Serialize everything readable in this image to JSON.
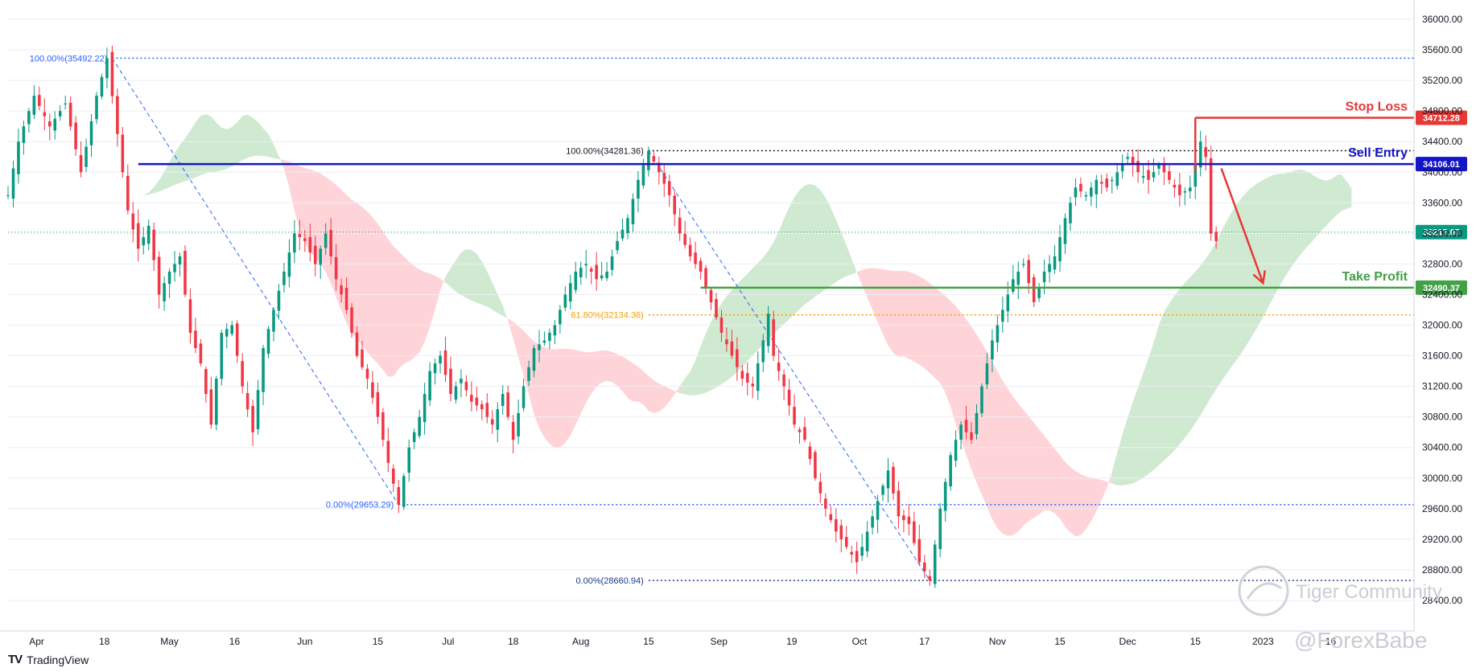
{
  "brand": {
    "logo": "TV",
    "name": "TradingView"
  },
  "watermark": {
    "community": "Tiger Community",
    "handle": "@ForexBabe"
  },
  "chart_data": {
    "type": "candlestick",
    "y_axis": {
      "min": 28000,
      "max": 36200,
      "ticks": [
        "36000.00",
        "35600.00",
        "35200.00",
        "34800.00",
        "34400.00",
        "34000.00",
        "33600.00",
        "33200.00",
        "32800.00",
        "32400.00",
        "32000.00",
        "31600.00",
        "31200.00",
        "30800.00",
        "30400.00",
        "30000.00",
        "29600.00",
        "29200.00",
        "28800.00",
        "28400.00"
      ],
      "tick_values": [
        36000,
        35600,
        35200,
        34800,
        34400,
        34000,
        33600,
        33200,
        32800,
        32400,
        32000,
        31600,
        31200,
        30800,
        30400,
        30000,
        29600,
        29200,
        28800,
        28400
      ]
    },
    "x_axis": {
      "labels": [
        {
          "t": "Apr",
          "d": 5.5
        },
        {
          "t": "18",
          "d": 18.5
        },
        {
          "t": "May",
          "d": 31
        },
        {
          "t": "16",
          "d": 43.5
        },
        {
          "t": "Jun",
          "d": 57
        },
        {
          "t": "15",
          "d": 71
        },
        {
          "t": "Jul",
          "d": 84.5
        },
        {
          "t": "18",
          "d": 97
        },
        {
          "t": "Aug",
          "d": 110
        },
        {
          "t": "15",
          "d": 123
        },
        {
          "t": "Sep",
          "d": 136.5
        },
        {
          "t": "19",
          "d": 150.5
        },
        {
          "t": "Oct",
          "d": 163.5
        },
        {
          "t": "17",
          "d": 176
        },
        {
          "t": "Nov",
          "d": 190
        },
        {
          "t": "15",
          "d": 202
        },
        {
          "t": "Dec",
          "d": 215
        },
        {
          "t": "15",
          "d": 228
        },
        {
          "t": "2023",
          "d": 241
        },
        {
          "t": "16",
          "d": 254
        }
      ],
      "day_start": 0,
      "day_end": 270
    },
    "series_close_path": [
      [
        0,
        33700
      ],
      [
        2,
        34400
      ],
      [
        5,
        35000
      ],
      [
        8,
        34600
      ],
      [
        11,
        34900
      ],
      [
        14,
        34000
      ],
      [
        17,
        35000
      ],
      [
        19,
        35492
      ],
      [
        21,
        34500
      ],
      [
        23,
        33500
      ],
      [
        25,
        33000
      ],
      [
        27,
        33300
      ],
      [
        29,
        32400
      ],
      [
        31,
        32700
      ],
      [
        33,
        32900
      ],
      [
        35,
        31900
      ],
      [
        37,
        31500
      ],
      [
        39,
        30700
      ],
      [
        41,
        31900
      ],
      [
        43,
        32000
      ],
      [
        45,
        31200
      ],
      [
        47,
        30600
      ],
      [
        49,
        31700
      ],
      [
        51,
        32200
      ],
      [
        53,
        32700
      ],
      [
        55,
        33200
      ],
      [
        57,
        33100
      ],
      [
        59,
        32800
      ],
      [
        61,
        33200
      ],
      [
        63,
        32600
      ],
      [
        65,
        32200
      ],
      [
        67,
        31600
      ],
      [
        69,
        31300
      ],
      [
        71,
        30800
      ],
      [
        73,
        30200
      ],
      [
        75,
        29653
      ],
      [
        77,
        30400
      ],
      [
        79,
        30800
      ],
      [
        81,
        31400
      ],
      [
        83,
        31600
      ],
      [
        85,
        31100
      ],
      [
        87,
        31300
      ],
      [
        89,
        31000
      ],
      [
        91,
        30900
      ],
      [
        93,
        30700
      ],
      [
        95,
        31100
      ],
      [
        97,
        30500
      ],
      [
        99,
        31200
      ],
      [
        101,
        31700
      ],
      [
        103,
        31800
      ],
      [
        105,
        32000
      ],
      [
        107,
        32400
      ],
      [
        109,
        32700
      ],
      [
        111,
        32800
      ],
      [
        113,
        32600
      ],
      [
        115,
        32700
      ],
      [
        117,
        33100
      ],
      [
        119,
        33400
      ],
      [
        121,
        33900
      ],
      [
        123,
        34281
      ],
      [
        125,
        34000
      ],
      [
        127,
        33700
      ],
      [
        129,
        33200
      ],
      [
        131,
        32900
      ],
      [
        133,
        32700
      ],
      [
        135,
        32300
      ],
      [
        137,
        31900
      ],
      [
        139,
        31600
      ],
      [
        141,
        31300
      ],
      [
        143,
        31200
      ],
      [
        145,
        31800
      ],
      [
        146,
        32150
      ],
      [
        147,
        31600
      ],
      [
        149,
        31200
      ],
      [
        151,
        30700
      ],
      [
        153,
        30500
      ],
      [
        155,
        30000
      ],
      [
        157,
        29600
      ],
      [
        159,
        29300
      ],
      [
        161,
        29100
      ],
      [
        163,
        28900
      ],
      [
        165,
        29300
      ],
      [
        167,
        29700
      ],
      [
        169,
        30100
      ],
      [
        171,
        29500
      ],
      [
        173,
        29400
      ],
      [
        175,
        28900
      ],
      [
        177,
        28661
      ],
      [
        179,
        29600
      ],
      [
        181,
        30300
      ],
      [
        183,
        30700
      ],
      [
        185,
        30500
      ],
      [
        187,
        31200
      ],
      [
        189,
        31800
      ],
      [
        191,
        32200
      ],
      [
        193,
        32600
      ],
      [
        195,
        32800
      ],
      [
        197,
        32300
      ],
      [
        199,
        32700
      ],
      [
        201,
        32900
      ],
      [
        203,
        33400
      ],
      [
        205,
        33800
      ],
      [
        207,
        33700
      ],
      [
        209,
        33900
      ],
      [
        211,
        33800
      ],
      [
        213,
        34000
      ],
      [
        215,
        34200
      ],
      [
        217,
        34000
      ],
      [
        219,
        33900
      ],
      [
        221,
        34100
      ],
      [
        223,
        33900
      ],
      [
        225,
        33700
      ],
      [
        227,
        33800
      ],
      [
        229,
        34400
      ],
      [
        230,
        34200
      ],
      [
        231,
        33200
      ],
      [
        232,
        33100
      ]
    ],
    "fibonacci": [
      {
        "label": "100.00%(35492.22)",
        "value": 35492.22,
        "d0": 20,
        "d1": 270,
        "color": "#2962ff"
      },
      {
        "label": "0.00%(29653.29)",
        "value": 29653.29,
        "d0": 75,
        "d1": 270,
        "color": "#2962ff"
      },
      {
        "label": "100.00%(34281.36)",
        "value": 34281.36,
        "d0": 123,
        "d1": 270,
        "color": "#131722"
      },
      {
        "label": "61.80%(32134.36)",
        "value": 32134.36,
        "d0": 123,
        "d1": 270,
        "color": "#f2a007"
      },
      {
        "label": "0.00%(28660.94)",
        "value": 28660.94,
        "d0": 123,
        "d1": 270,
        "color": "#1b3a8c"
      }
    ],
    "fib_trendlines": [
      {
        "d0": 20,
        "v0": 35492.22,
        "d1": 75,
        "v1": 29653.29
      },
      {
        "d0": 123,
        "v0": 34281.36,
        "d1": 177,
        "v1": 28660.94
      }
    ],
    "levels": [
      {
        "name": "Stop Loss",
        "value": 34712.28,
        "price_label": "34712.28",
        "color": "#e53935",
        "d0": 228
      },
      {
        "name": "Sell Entry",
        "value": 34106.01,
        "price_label": "34106.01",
        "color": "#1414c8",
        "d0": 25
      },
      {
        "name": "Take Profit",
        "value": 32490.37,
        "price_label": "32490.37",
        "color": "#43a047",
        "d0": 133
      }
    ],
    "last_price": {
      "value": 33217.07,
      "label": "33217.07",
      "color": "#089981"
    },
    "forecast_arrow": {
      "d0": 233,
      "v0": 34050,
      "d1": 241,
      "v1": 32550,
      "color": "#e53935"
    },
    "colors": {
      "up": "#089981",
      "down": "#f23645",
      "cloud_bull": "#c8e6c9",
      "cloud_bear": "#ffcdd2",
      "grid": "#eceef3"
    }
  }
}
